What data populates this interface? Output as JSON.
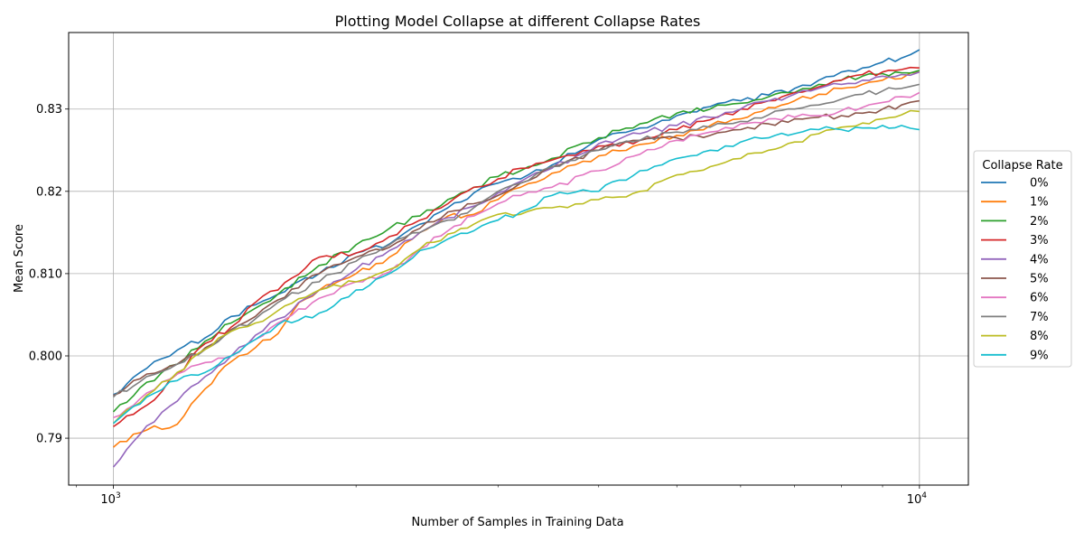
{
  "chart_data": {
    "type": "line",
    "title": "Plotting Model Collapse at different Collapse Rates",
    "xlabel": "Number of Samples in Training Data",
    "ylabel": "Mean Score",
    "x_scale": "log",
    "xlim": [
      880,
      11500
    ],
    "ylim": [
      0.7843,
      0.8393
    ],
    "x_ticks": [
      {
        "value": 1000,
        "base": "10",
        "exp": "3"
      },
      {
        "value": 10000,
        "base": "10",
        "exp": "4"
      }
    ],
    "y_ticks": [
      {
        "value": 0.79,
        "label": "0.79"
      },
      {
        "value": 0.8,
        "label": "0.800"
      },
      {
        "value": 0.81,
        "label": "0.810"
      },
      {
        "value": 0.82,
        "label": "0.82"
      },
      {
        "value": 0.83,
        "label": "0.83"
      }
    ],
    "grid": true,
    "legend": {
      "title": "Collapse Rate",
      "placement": "center-right outside"
    },
    "series": [
      {
        "name": "0%",
        "color": "#1f77b4",
        "points": [
          [
            1000,
            0.7953
          ],
          [
            1100,
            0.7985
          ],
          [
            1200,
            0.8007
          ],
          [
            1300,
            0.8022
          ],
          [
            1400,
            0.8048
          ],
          [
            1500,
            0.8062
          ],
          [
            1600,
            0.8075
          ],
          [
            1800,
            0.81
          ],
          [
            2000,
            0.8125
          ],
          [
            2200,
            0.8136
          ],
          [
            2400,
            0.816
          ],
          [
            2600,
            0.818
          ],
          [
            2800,
            0.8198
          ],
          [
            3000,
            0.821
          ],
          [
            3200,
            0.8215
          ],
          [
            3500,
            0.8232
          ],
          [
            4000,
            0.8263
          ],
          [
            4500,
            0.8277
          ],
          [
            5000,
            0.8292
          ],
          [
            5500,
            0.8303
          ],
          [
            6000,
            0.831
          ],
          [
            6500,
            0.8317
          ],
          [
            7000,
            0.8325
          ],
          [
            7500,
            0.8335
          ],
          [
            8000,
            0.8345
          ],
          [
            8500,
            0.835
          ],
          [
            9000,
            0.8357
          ],
          [
            9500,
            0.8362
          ],
          [
            10000,
            0.8372
          ]
        ]
      },
      {
        "name": "1%",
        "color": "#ff7f0e",
        "points": [
          [
            1000,
            0.7889
          ],
          [
            1100,
            0.791
          ],
          [
            1200,
            0.7917
          ],
          [
            1300,
            0.796
          ],
          [
            1400,
            0.7993
          ],
          [
            1500,
            0.801
          ],
          [
            1600,
            0.8027
          ],
          [
            1700,
            0.8065
          ],
          [
            1800,
            0.808
          ],
          [
            2000,
            0.81
          ],
          [
            2200,
            0.812
          ],
          [
            2400,
            0.815
          ],
          [
            2600,
            0.817
          ],
          [
            2800,
            0.8172
          ],
          [
            3000,
            0.819
          ],
          [
            3200,
            0.8205
          ],
          [
            3500,
            0.8222
          ],
          [
            4000,
            0.8243
          ],
          [
            4500,
            0.8257
          ],
          [
            5000,
            0.8268
          ],
          [
            5500,
            0.828
          ],
          [
            6000,
            0.8288
          ],
          [
            6500,
            0.8302
          ],
          [
            7000,
            0.831
          ],
          [
            7500,
            0.8318
          ],
          [
            8000,
            0.8325
          ],
          [
            8500,
            0.833
          ],
          [
            9000,
            0.8335
          ],
          [
            9500,
            0.8337
          ],
          [
            10000,
            0.8345
          ]
        ]
      },
      {
        "name": "2%",
        "color": "#2ca02c",
        "points": [
          [
            1000,
            0.7932
          ],
          [
            1100,
            0.7968
          ],
          [
            1200,
            0.799
          ],
          [
            1300,
            0.8018
          ],
          [
            1400,
            0.804
          ],
          [
            1500,
            0.8058
          ],
          [
            1600,
            0.8075
          ],
          [
            1800,
            0.811
          ],
          [
            2000,
            0.8135
          ],
          [
            2200,
            0.8155
          ],
          [
            2400,
            0.817
          ],
          [
            2600,
            0.819
          ],
          [
            2800,
            0.8205
          ],
          [
            3000,
            0.8218
          ],
          [
            3200,
            0.8225
          ],
          [
            3500,
            0.824
          ],
          [
            4000,
            0.8265
          ],
          [
            4500,
            0.8282
          ],
          [
            5000,
            0.8295
          ],
          [
            5500,
            0.83
          ],
          [
            6000,
            0.8307
          ],
          [
            6500,
            0.8315
          ],
          [
            7000,
            0.832
          ],
          [
            7500,
            0.833
          ],
          [
            8000,
            0.8335
          ],
          [
            8500,
            0.834
          ],
          [
            9000,
            0.8343
          ],
          [
            9500,
            0.8344
          ],
          [
            10000,
            0.8347
          ]
        ]
      },
      {
        "name": "3%",
        "color": "#d62728",
        "points": [
          [
            1000,
            0.7914
          ],
          [
            1100,
            0.794
          ],
          [
            1200,
            0.7978
          ],
          [
            1300,
            0.8015
          ],
          [
            1400,
            0.8035
          ],
          [
            1500,
            0.8065
          ],
          [
            1600,
            0.808
          ],
          [
            1800,
            0.812
          ],
          [
            2000,
            0.8125
          ],
          [
            2200,
            0.8145
          ],
          [
            2400,
            0.8165
          ],
          [
            2600,
            0.8185
          ],
          [
            2800,
            0.8205
          ],
          [
            3000,
            0.8215
          ],
          [
            3200,
            0.8228
          ],
          [
            3500,
            0.8238
          ],
          [
            4000,
            0.8255
          ],
          [
            4500,
            0.8262
          ],
          [
            5000,
            0.8275
          ],
          [
            5500,
            0.8287
          ],
          [
            6000,
            0.83
          ],
          [
            6500,
            0.831
          ],
          [
            7000,
            0.832
          ],
          [
            7500,
            0.8327
          ],
          [
            8000,
            0.8335
          ],
          [
            8500,
            0.8342
          ],
          [
            9000,
            0.8345
          ],
          [
            9500,
            0.8348
          ],
          [
            10000,
            0.835
          ]
        ]
      },
      {
        "name": "4%",
        "color": "#9467bd",
        "points": [
          [
            1000,
            0.7865
          ],
          [
            1100,
            0.7915
          ],
          [
            1200,
            0.7945
          ],
          [
            1300,
            0.7975
          ],
          [
            1400,
            0.8
          ],
          [
            1500,
            0.8025
          ],
          [
            1600,
            0.8045
          ],
          [
            1800,
            0.808
          ],
          [
            2000,
            0.8105
          ],
          [
            2200,
            0.8128
          ],
          [
            2400,
            0.815
          ],
          [
            2600,
            0.8168
          ],
          [
            2800,
            0.8182
          ],
          [
            3000,
            0.8198
          ],
          [
            3200,
            0.8212
          ],
          [
            3500,
            0.8228
          ],
          [
            4000,
            0.8258
          ],
          [
            4500,
            0.827
          ],
          [
            5000,
            0.828
          ],
          [
            5500,
            0.829
          ],
          [
            6000,
            0.83
          ],
          [
            6500,
            0.831
          ],
          [
            7000,
            0.8318
          ],
          [
            7500,
            0.8325
          ],
          [
            8000,
            0.833
          ],
          [
            8500,
            0.8335
          ],
          [
            9000,
            0.834
          ],
          [
            9500,
            0.8342
          ],
          [
            10000,
            0.8345
          ]
        ]
      },
      {
        "name": "5%",
        "color": "#8c564b",
        "points": [
          [
            1000,
            0.7952
          ],
          [
            1100,
            0.7978
          ],
          [
            1200,
            0.799
          ],
          [
            1300,
            0.801
          ],
          [
            1400,
            0.8032
          ],
          [
            1500,
            0.8048
          ],
          [
            1600,
            0.8068
          ],
          [
            1800,
            0.81
          ],
          [
            2000,
            0.812
          ],
          [
            2200,
            0.8132
          ],
          [
            2400,
            0.8155
          ],
          [
            2600,
            0.8175
          ],
          [
            2800,
            0.8185
          ],
          [
            3000,
            0.8195
          ],
          [
            3200,
            0.821
          ],
          [
            3500,
            0.823
          ],
          [
            4000,
            0.825
          ],
          [
            4500,
            0.8262
          ],
          [
            5000,
            0.8265
          ],
          [
            5500,
            0.8268
          ],
          [
            6000,
            0.8275
          ],
          [
            6500,
            0.8282
          ],
          [
            7000,
            0.8288
          ],
          [
            7500,
            0.829
          ],
          [
            8000,
            0.8292
          ],
          [
            8500,
            0.8295
          ],
          [
            9000,
            0.83
          ],
          [
            9500,
            0.8305
          ],
          [
            10000,
            0.831
          ]
        ]
      },
      {
        "name": "6%",
        "color": "#e377c2",
        "points": [
          [
            1000,
            0.7925
          ],
          [
            1100,
            0.7955
          ],
          [
            1200,
            0.7978
          ],
          [
            1300,
            0.7992
          ],
          [
            1400,
            0.8
          ],
          [
            1500,
            0.802
          ],
          [
            1600,
            0.804
          ],
          [
            1800,
            0.807
          ],
          [
            2000,
            0.809
          ],
          [
            2200,
            0.8102
          ],
          [
            2400,
            0.813
          ],
          [
            2600,
            0.8152
          ],
          [
            2800,
            0.817
          ],
          [
            3000,
            0.8185
          ],
          [
            3200,
            0.8195
          ],
          [
            3500,
            0.8205
          ],
          [
            4000,
            0.8225
          ],
          [
            4500,
            0.8245
          ],
          [
            5000,
            0.8262
          ],
          [
            5500,
            0.8272
          ],
          [
            6000,
            0.8282
          ],
          [
            6500,
            0.8288
          ],
          [
            7000,
            0.829
          ],
          [
            7500,
            0.8292
          ],
          [
            8000,
            0.8298
          ],
          [
            8500,
            0.8302
          ],
          [
            9000,
            0.8308
          ],
          [
            9500,
            0.8315
          ],
          [
            10000,
            0.832
          ]
        ]
      },
      {
        "name": "7%",
        "color": "#7f7f7f",
        "points": [
          [
            1000,
            0.795
          ],
          [
            1100,
            0.7975
          ],
          [
            1200,
            0.799
          ],
          [
            1300,
            0.8008
          ],
          [
            1400,
            0.803
          ],
          [
            1500,
            0.8045
          ],
          [
            1600,
            0.8065
          ],
          [
            1800,
            0.809
          ],
          [
            2000,
            0.8115
          ],
          [
            2200,
            0.8135
          ],
          [
            2400,
            0.815
          ],
          [
            2600,
            0.8165
          ],
          [
            2800,
            0.818
          ],
          [
            3000,
            0.82
          ],
          [
            3200,
            0.821
          ],
          [
            3500,
            0.823
          ],
          [
            4000,
            0.825
          ],
          [
            4500,
            0.8262
          ],
          [
            5000,
            0.8272
          ],
          [
            5500,
            0.8278
          ],
          [
            6000,
            0.8285
          ],
          [
            6500,
            0.8293
          ],
          [
            7000,
            0.83
          ],
          [
            7500,
            0.8305
          ],
          [
            8000,
            0.8312
          ],
          [
            8500,
            0.8318
          ],
          [
            9000,
            0.8322
          ],
          [
            9500,
            0.8325
          ],
          [
            10000,
            0.833
          ]
        ]
      },
      {
        "name": "8%",
        "color": "#bcbd22",
        "points": [
          [
            1000,
            0.7918
          ],
          [
            1100,
            0.7952
          ],
          [
            1200,
            0.798
          ],
          [
            1300,
            0.8008
          ],
          [
            1400,
            0.803
          ],
          [
            1500,
            0.804
          ],
          [
            1600,
            0.8055
          ],
          [
            1800,
            0.808
          ],
          [
            2000,
            0.809
          ],
          [
            2200,
            0.8105
          ],
          [
            2400,
            0.813
          ],
          [
            2600,
            0.8148
          ],
          [
            2800,
            0.816
          ],
          [
            3000,
            0.8172
          ],
          [
            3200,
            0.8172
          ],
          [
            3500,
            0.818
          ],
          [
            4000,
            0.819
          ],
          [
            4500,
            0.82
          ],
          [
            5000,
            0.822
          ],
          [
            5500,
            0.823
          ],
          [
            6000,
            0.824
          ],
          [
            6500,
            0.825
          ],
          [
            7000,
            0.826
          ],
          [
            7500,
            0.827
          ],
          [
            8000,
            0.8278
          ],
          [
            8500,
            0.8283
          ],
          [
            9000,
            0.8288
          ],
          [
            9500,
            0.8293
          ],
          [
            10000,
            0.8297
          ]
        ]
      },
      {
        "name": "9%",
        "color": "#17becf",
        "points": [
          [
            1000,
            0.7918
          ],
          [
            1100,
            0.795
          ],
          [
            1200,
            0.797
          ],
          [
            1300,
            0.798
          ],
          [
            1400,
            0.8
          ],
          [
            1500,
            0.802
          ],
          [
            1600,
            0.8038
          ],
          [
            1800,
            0.8052
          ],
          [
            2000,
            0.808
          ],
          [
            2200,
            0.81
          ],
          [
            2400,
            0.8128
          ],
          [
            2600,
            0.8142
          ],
          [
            2800,
            0.8152
          ],
          [
            3000,
            0.8165
          ],
          [
            3200,
            0.8175
          ],
          [
            3500,
            0.8195
          ],
          [
            4000,
            0.82
          ],
          [
            4500,
            0.8225
          ],
          [
            5000,
            0.824
          ],
          [
            5500,
            0.825
          ],
          [
            6000,
            0.826
          ],
          [
            6500,
            0.8265
          ],
          [
            7000,
            0.827
          ],
          [
            7500,
            0.8275
          ],
          [
            8000,
            0.8275
          ],
          [
            8500,
            0.8277
          ],
          [
            9000,
            0.828
          ],
          [
            9500,
            0.828
          ],
          [
            10000,
            0.8275
          ]
        ]
      }
    ]
  }
}
